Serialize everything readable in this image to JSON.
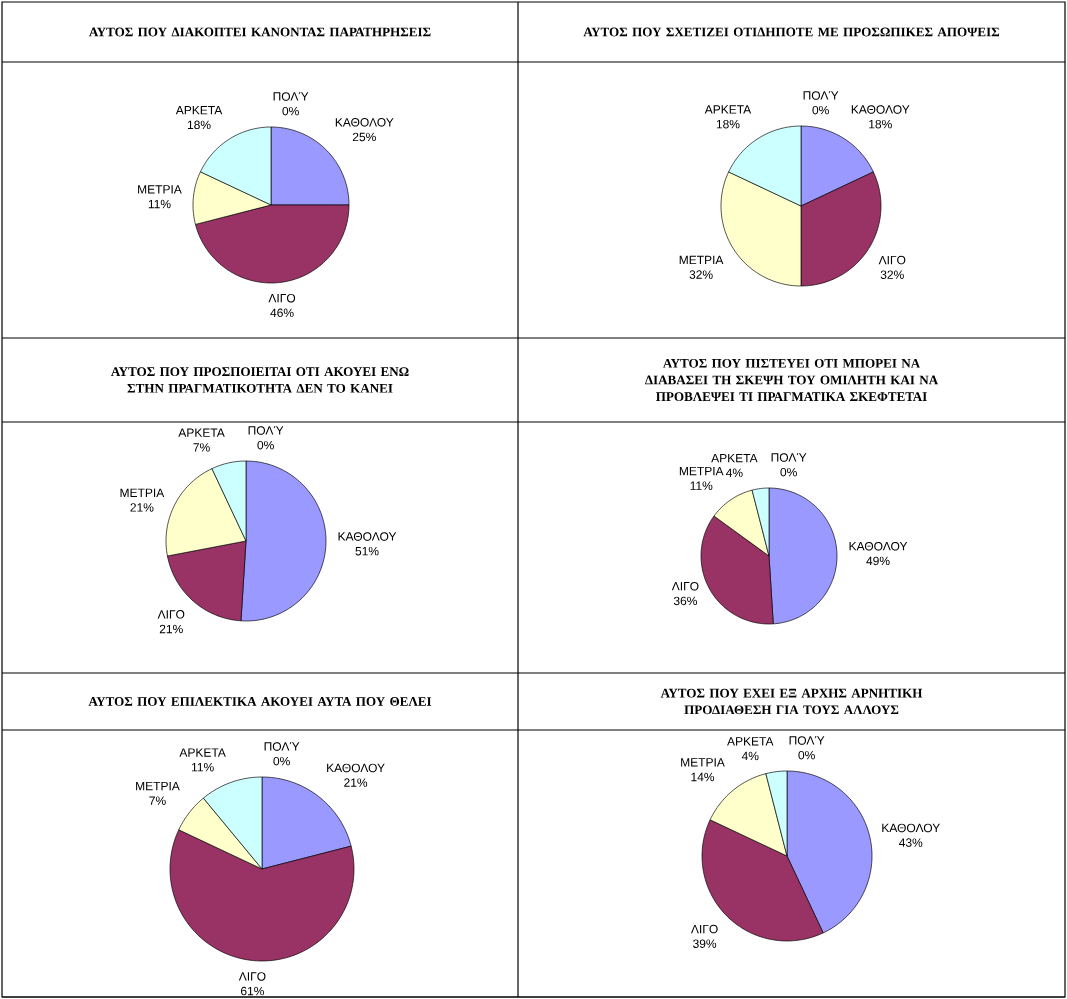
{
  "chart_data": [
    {
      "type": "pie",
      "title": "ΑΥΤΟΣ ΠΟΥ ΔΙΑΚΟΠΤΕΙ ΚΑΝΟΝΤΑΣ ΠΑΡΑΤΗΡΗΣΕΙΣ",
      "categories": [
        "ΚΑΘΟΛΟΥ",
        "ΛΙΓΟ",
        "ΜΕΤΡΙΑ",
        "ΑΡΚΕΤΑ",
        "ΠΟΛΎ"
      ],
      "values": [
        25,
        46,
        11,
        18,
        0
      ],
      "value_labels": [
        "25%",
        "46%",
        "11%",
        "18%",
        "0%"
      ],
      "colors": [
        "#9999ff",
        "#993366",
        "#ffffcc",
        "#ccffff",
        "#660066"
      ]
    },
    {
      "type": "pie",
      "title": "ΑΥΤΟΣ ΠΟΥ ΣΧΕΤΙΖΕΙ ΟΤΙΔΗΠΟΤΕ ΜΕ ΠΡΟΣΩΠΙΚΕΣ ΑΠΟΨΕΙΣ",
      "categories": [
        "ΚΑΘΟΛΟΥ",
        "ΛΙΓΟ",
        "ΜΕΤΡΙΑ",
        "ΑΡΚΕΤΑ",
        "ΠΟΛΎ"
      ],
      "values": [
        18,
        32,
        32,
        18,
        0
      ],
      "value_labels": [
        "18%",
        "32%",
        "32%",
        "18%",
        "0%"
      ],
      "colors": [
        "#9999ff",
        "#993366",
        "#ffffcc",
        "#ccffff",
        "#660066"
      ]
    },
    {
      "type": "pie",
      "title": "ΑΥΤΟΣ ΠΟΥ ΠΡΟΣΠΟΙΕΙΤΑΙ ΟΤΙ ΑΚΟΥΕΙ ΕΝΩ ΣΤΗΝ ΠΡΑΓΜΑΤΙΚΟΤΗΤΑ ΔΕΝ ΤΟ ΚΑΝΕΙ",
      "categories": [
        "ΚΑΘΟΛΟΥ",
        "ΛΙΓΟ",
        "ΜΕΤΡΙΑ",
        "ΑΡΚΕΤΑ",
        "ΠΟΛΎ"
      ],
      "values": [
        51,
        21,
        21,
        7,
        0
      ],
      "value_labels": [
        "51%",
        "21%",
        "21%",
        "7%",
        "0%"
      ],
      "colors": [
        "#9999ff",
        "#993366",
        "#ffffcc",
        "#ccffff",
        "#660066"
      ]
    },
    {
      "type": "pie",
      "title": "ΑΥΤΟΣ ΠΟΥ ΠΙΣΤΕΥΕΙ ΟΤΙ ΜΠΟΡΕΙ ΝΑ ΔΙΑΒΑΣΕΙ ΤΗ ΣΚΕΨΗ ΤΟΥ ΟΜΙΛΗΤΗ ΚΑΙ ΝΑ ΠΡΟΒΛΕΨΕΙ ΤΙ ΠΡΑΓΜΑΤΙΚΑ ΣΚΕΦΤΕΤΑΙ",
      "categories": [
        "ΚΑΘΟΛΟΥ",
        "ΛΙΓΟ",
        "ΜΕΤΡΙΑ",
        "ΑΡΚΕΤΑ",
        "ΠΟΛΎ"
      ],
      "values": [
        49,
        36,
        11,
        4,
        0
      ],
      "value_labels": [
        "49%",
        "36%",
        "11%",
        "4%",
        "0%"
      ],
      "colors": [
        "#9999ff",
        "#993366",
        "#ffffcc",
        "#ccffff",
        "#660066"
      ]
    },
    {
      "type": "pie",
      "title": "ΑΥΤΟΣ ΠΟΥ ΕΠΙΛΕΚΤΙΚΑ ΑΚΟΥΕΙ ΑΥΤΑ ΠΟΥ ΘΕΛΕΙ",
      "categories": [
        "ΚΑΘΟΛΟΥ",
        "ΛΙΓΟ",
        "ΜΕΤΡΙΑ",
        "ΑΡΚΕΤΑ",
        "ΠΟΛΎ"
      ],
      "values": [
        21,
        61,
        7,
        11,
        0
      ],
      "value_labels": [
        "21%",
        "61%",
        "7%",
        "11%",
        "0%"
      ],
      "colors": [
        "#9999ff",
        "#993366",
        "#ffffcc",
        "#ccffff",
        "#660066"
      ]
    },
    {
      "type": "pie",
      "title": "ΑΥΤΟΣ ΠΟΥ ΕΧΕΙ ΕΞ ΑΡΧΗΣ ΑΡΝΗΤΙΚΗ ΠΡΟΔΙΑΘΕΣΗ ΓΙΑ ΤΟΥΣ ΑΛΛΟΥΣ",
      "categories": [
        "ΚΑΘΟΛΟΥ",
        "ΛΙΓΟ",
        "ΜΕΤΡΙΑ",
        "ΑΡΚΕΤΑ",
        "ΠΟΛΎ"
      ],
      "values": [
        43,
        39,
        14,
        4,
        0
      ],
      "value_labels": [
        "43%",
        "39%",
        "14%",
        "4%",
        "0%"
      ],
      "colors": [
        "#9999ff",
        "#993366",
        "#ffffcc",
        "#ccffff",
        "#660066"
      ]
    }
  ]
}
